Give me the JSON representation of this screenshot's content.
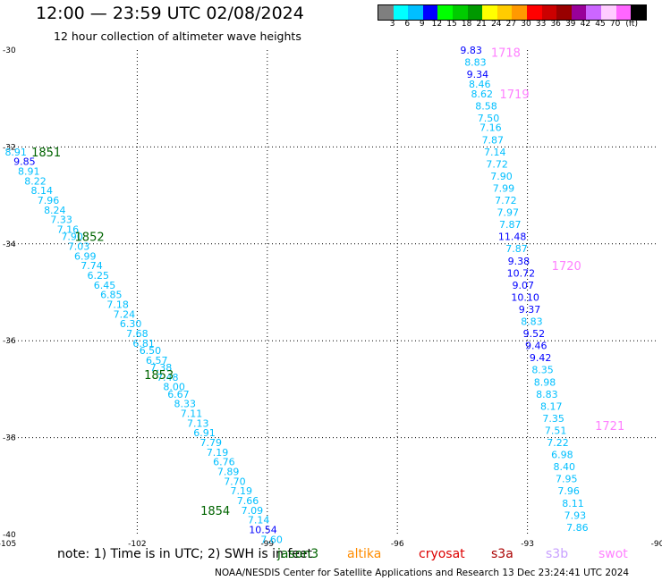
{
  "title": "12:00 — 23:59 UTC 02/08/2024",
  "subtitle": "12 hour collection of altimeter wave heights",
  "colorbar": {
    "colors": [
      "#7f7f7f",
      "#00ffff",
      "#00bfff",
      "#0000ff",
      "#00ff00",
      "#00cc00",
      "#009900",
      "#ffff00",
      "#ffcc00",
      "#ff9900",
      "#ff0000",
      "#cc0000",
      "#990000",
      "#990099",
      "#cc66ff",
      "#ffccff",
      "#ff66ff",
      "#000000"
    ],
    "labels": [
      "3",
      "6",
      "9",
      "12",
      "15",
      "18",
      "21",
      "24",
      "27",
      "30",
      "33",
      "36",
      "39",
      "42",
      "45",
      "70",
      "(ft)"
    ]
  },
  "axes": {
    "lat_ticks": [
      "-30",
      "-32",
      "-34",
      "-36",
      "-38",
      "-40"
    ],
    "lon_ticks": [
      "-105",
      "-102",
      "-99",
      "-96",
      "-93",
      "-90"
    ],
    "lat_range": [
      -40,
      -30
    ],
    "lon_range": [
      -105,
      -90
    ]
  },
  "note": "note:  1) Time is in UTC; 2) SWH is in feet",
  "satellites": [
    {
      "name": "jason3",
      "color": "#006400",
      "x": 310
    },
    {
      "name": "altika",
      "color": "#ff8c00",
      "x": 388
    },
    {
      "name": "cryosat",
      "color": "#dd0000",
      "x": 468
    },
    {
      "name": "s3a",
      "color": "#aa0000",
      "x": 549
    },
    {
      "name": "s3b",
      "color": "#c8a0ff",
      "x": 610
    },
    {
      "name": "swot",
      "color": "#ff80ff",
      "x": 669
    }
  ],
  "footer": "NOAA/NESDIS Center for Satellite Applications and Research     13 Dec 23:24:41 UTC 2024",
  "chart_data": {
    "type": "scatter",
    "tracks": [
      {
        "satellite": "jason3",
        "time_labels": [
          {
            "text": "1851",
            "lat": -32.1,
            "lon": -104.1
          },
          {
            "text": "1852",
            "lat": -33.85,
            "lon": -103.1
          },
          {
            "text": "1853",
            "lat": -36.7,
            "lon": -101.5
          },
          {
            "text": "1854",
            "lat": -39.5,
            "lon": -100.2
          }
        ],
        "points": [
          [
            "8.91",
            -32.1,
            -104.8
          ],
          [
            "9.85",
            -32.3,
            -104.6
          ],
          [
            "8.91",
            -32.5,
            -104.5
          ],
          [
            "8.22",
            -32.7,
            -104.35
          ],
          [
            "8.14",
            -32.9,
            -104.2
          ],
          [
            "7.96",
            -33.1,
            -104.05
          ],
          [
            "8.24",
            -33.3,
            -103.9
          ],
          [
            "7.33",
            -33.5,
            -103.75
          ],
          [
            "7.16",
            -33.7,
            -103.6
          ],
          [
            "7.90",
            -33.85,
            -103.5
          ],
          [
            "7.03",
            -34.05,
            -103.35
          ],
          [
            "6.99",
            -34.25,
            -103.2
          ],
          [
            "7.74",
            -34.45,
            -103.05
          ],
          [
            "6.25",
            -34.65,
            -102.9
          ],
          [
            "6.45",
            -34.85,
            -102.75
          ],
          [
            "6.85",
            -35.05,
            -102.6
          ],
          [
            "7.18",
            -35.25,
            -102.45
          ],
          [
            "7.24",
            -35.45,
            -102.3
          ],
          [
            "6.30",
            -35.65,
            -102.15
          ],
          [
            "7.68",
            -35.85,
            -102.0
          ],
          [
            "6.81",
            -36.05,
            -101.85
          ],
          [
            "6.50",
            -36.2,
            -101.7
          ],
          [
            "6.57",
            -36.4,
            -101.55
          ],
          [
            "7.38",
            -36.55,
            -101.45
          ],
          [
            "7.48",
            -36.75,
            -101.3
          ],
          [
            "8.00",
            -36.95,
            -101.15
          ],
          [
            "6.67",
            -37.1,
            -101.05
          ],
          [
            "8.33",
            -37.3,
            -100.9
          ],
          [
            "7.11",
            -37.5,
            -100.75
          ],
          [
            "7.13",
            -37.7,
            -100.6
          ],
          [
            "6.91",
            -37.9,
            -100.45
          ],
          [
            "7.79",
            -38.1,
            -100.3
          ],
          [
            "7.19",
            -38.3,
            -100.15
          ],
          [
            "6.76",
            -38.5,
            -100.0
          ],
          [
            "7.89",
            -38.7,
            -99.9
          ],
          [
            "7.70",
            -38.9,
            -99.75
          ],
          [
            "7.19",
            -39.1,
            -99.6
          ],
          [
            "7.66",
            -39.3,
            -99.45
          ],
          [
            "7.09",
            -39.5,
            -99.35
          ],
          [
            "7.14",
            -39.7,
            -99.2
          ],
          [
            "10.54",
            -39.9,
            -99.1
          ],
          [
            "7.60",
            -40.1,
            -98.9
          ]
        ]
      },
      {
        "satellite": "swot",
        "time_labels": [
          {
            "text": "1718",
            "lat": -30.05,
            "lon": -93.5
          },
          {
            "text": "1719",
            "lat": -30.9,
            "lon": -93.3
          },
          {
            "text": "1720",
            "lat": -34.45,
            "lon": -92.1
          },
          {
            "text": "1721",
            "lat": -37.75,
            "lon": -91.1
          }
        ],
        "points": [
          [
            "9.83",
            -30.0,
            -94.3
          ],
          [
            "8.83",
            -30.25,
            -94.2
          ],
          [
            "9.34",
            -30.5,
            -94.15
          ],
          [
            "8.46",
            -30.7,
            -94.1
          ],
          [
            "8.62",
            -30.9,
            -94.05
          ],
          [
            "8.58",
            -31.15,
            -93.95
          ],
          [
            "7.50",
            -31.4,
            -93.9
          ],
          [
            "7.16",
            -31.6,
            -93.85
          ],
          [
            "7.87",
            -31.85,
            -93.8
          ],
          [
            "7.14",
            -32.1,
            -93.75
          ],
          [
            "7.72",
            -32.35,
            -93.7
          ],
          [
            "7.90",
            -32.6,
            -93.6
          ],
          [
            "7.99",
            -32.85,
            -93.55
          ],
          [
            "7.72",
            -33.1,
            -93.5
          ],
          [
            "7.97",
            -33.35,
            -93.45
          ],
          [
            "7.87",
            -33.6,
            -93.4
          ],
          [
            "11.48",
            -33.85,
            -93.35
          ],
          [
            "7.87",
            -34.1,
            -93.25
          ],
          [
            "9.38",
            -34.35,
            -93.2
          ],
          [
            "10.72",
            -34.6,
            -93.15
          ],
          [
            "9.07",
            -34.85,
            -93.1
          ],
          [
            "10.10",
            -35.1,
            -93.05
          ],
          [
            "9.37",
            -35.35,
            -92.95
          ],
          [
            "8.83",
            -35.6,
            -92.9
          ],
          [
            "9.52",
            -35.85,
            -92.85
          ],
          [
            "9.46",
            -36.1,
            -92.8
          ],
          [
            "9.42",
            -36.35,
            -92.7
          ],
          [
            "8.35",
            -36.6,
            -92.65
          ],
          [
            "8.98",
            -36.85,
            -92.6
          ],
          [
            "8.83",
            -37.1,
            -92.55
          ],
          [
            "8.17",
            -37.35,
            -92.45
          ],
          [
            "7.35",
            -37.6,
            -92.4
          ],
          [
            "7.51",
            -37.85,
            -92.35
          ],
          [
            "7.22",
            -38.1,
            -92.3
          ],
          [
            "6.98",
            -38.35,
            -92.2
          ],
          [
            "8.40",
            -38.6,
            -92.15
          ],
          [
            "7.95",
            -38.85,
            -92.1
          ],
          [
            "7.96",
            -39.1,
            -92.05
          ],
          [
            "8.11",
            -39.35,
            -91.95
          ],
          [
            "7.93",
            -39.6,
            -91.9
          ],
          [
            "7.86",
            -39.85,
            -91.85
          ]
        ]
      }
    ]
  }
}
